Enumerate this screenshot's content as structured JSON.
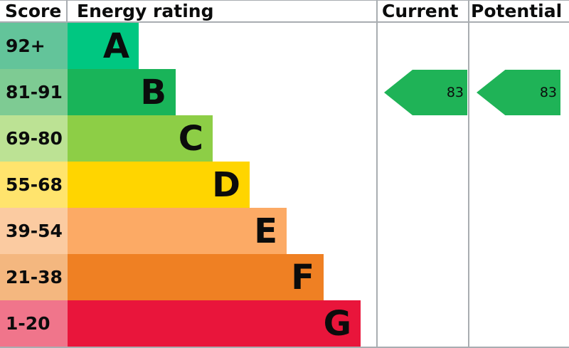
{
  "header": {
    "score": "Score",
    "energy_rating": "Energy rating",
    "current": "Current",
    "potential": "Potential"
  },
  "colors": {
    "border_gray": "#a9adb1",
    "text_black": "#0b0c0c",
    "arrow_green": "#1fb357"
  },
  "chart_data": {
    "type": "bar",
    "columns": [
      "Score",
      "Energy rating",
      "Current",
      "Potential"
    ],
    "bands": [
      {
        "letter": "A",
        "score_range": "92+",
        "color": "#00c781",
        "score_cell_color": "#63c49a"
      },
      {
        "letter": "B",
        "score_range": "81-91",
        "color": "#19b459",
        "score_cell_color": "#7ecb93"
      },
      {
        "letter": "C",
        "score_range": "69-80",
        "color": "#8dce46",
        "score_cell_color": "#bce294"
      },
      {
        "letter": "D",
        "score_range": "55-68",
        "color": "#ffd500",
        "score_cell_color": "#ffe46d"
      },
      {
        "letter": "E",
        "score_range": "39-54",
        "color": "#fcaa65",
        "score_cell_color": "#fbcba1"
      },
      {
        "letter": "F",
        "score_range": "21-38",
        "color": "#ef8023",
        "score_cell_color": "#f4b77f"
      },
      {
        "letter": "G",
        "score_range": "1-20",
        "color": "#e9153b",
        "score_cell_color": "#f0758b"
      }
    ],
    "current": {
      "value": "83",
      "band": "B",
      "arrow_color": "#1fb357"
    },
    "potential": {
      "value": "83",
      "band": "B",
      "arrow_color": "#1fb357"
    }
  }
}
